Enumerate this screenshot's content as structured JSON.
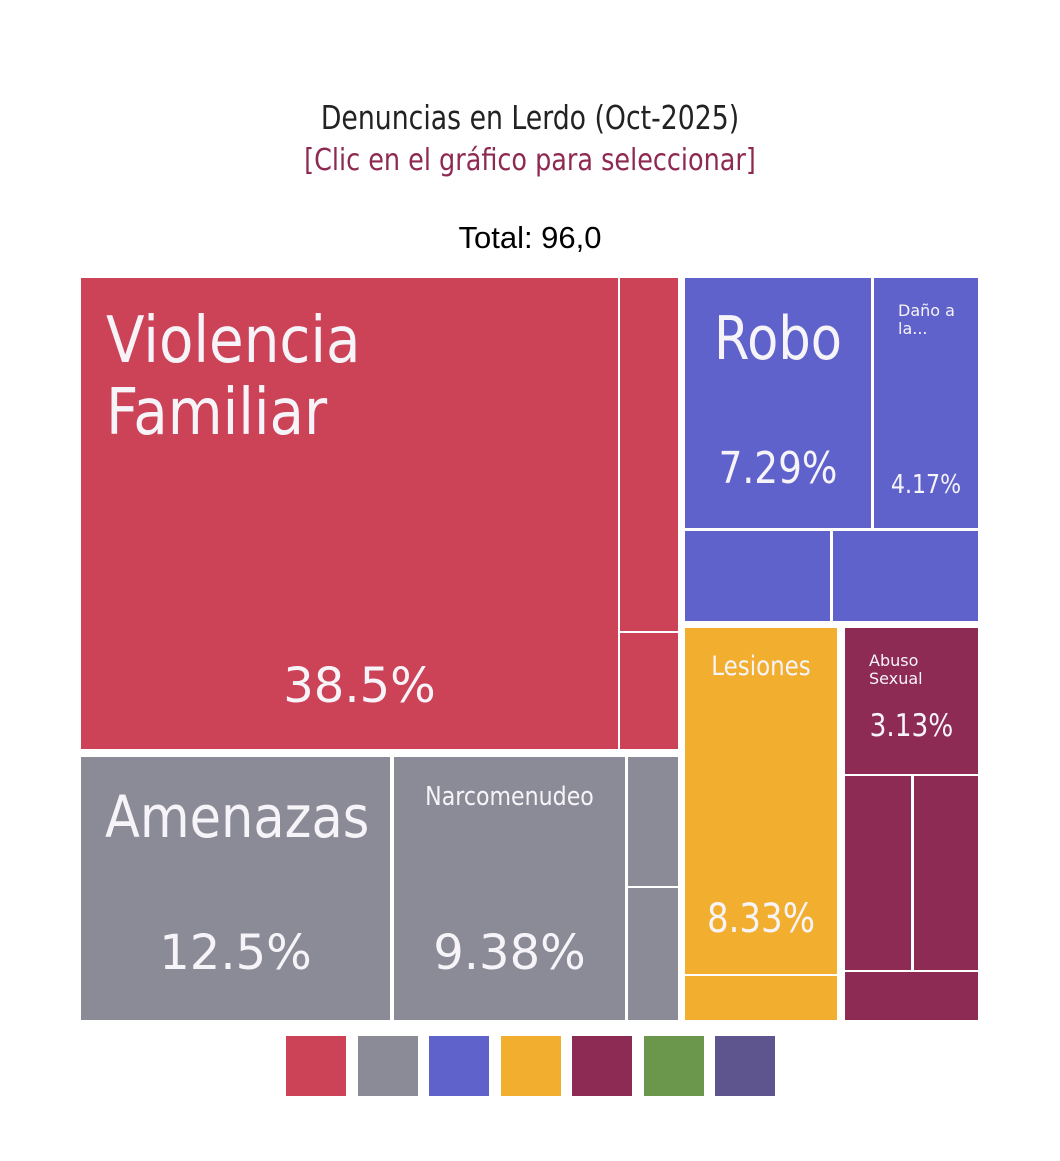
{
  "title": "Denuncias en Lerdo (Oct-2025)",
  "subtitle": "[Clic en el gráfico para seleccionar]",
  "total_label": "Total: 96,0",
  "chart_data": {
    "type": "treemap",
    "title": "Denuncias en Lerdo (Oct-2025)",
    "total": 96,
    "groups": [
      {
        "name": "Violencia Familiar",
        "color": "#cc4257",
        "cells": [
          {
            "label": "Violencia Familiar",
            "value": 37,
            "pct": "38.5%"
          },
          {
            "label": "",
            "value": 3
          },
          {
            "label": "",
            "value": 1
          }
        ]
      },
      {
        "name": "Amenazas",
        "color": "#8b8b97",
        "cells": [
          {
            "label": "Amenazas",
            "value": 12,
            "pct": "12.5%"
          },
          {
            "label": "Narcomenudeo",
            "value": 9,
            "pct": "9.38%"
          },
          {
            "label": "",
            "value": 1
          },
          {
            "label": "",
            "value": 1
          }
        ]
      },
      {
        "name": "Robo",
        "color": "#5f62cb",
        "cells": [
          {
            "label": "Robo",
            "value": 7,
            "pct": "7.29%"
          },
          {
            "label": "Daño a la...",
            "value": 4,
            "pct": "4.17%"
          },
          {
            "label": "",
            "value": 2
          },
          {
            "label": "",
            "value": 2
          }
        ]
      },
      {
        "name": "Lesiones",
        "color": "#f2ae2e",
        "cells": [
          {
            "label": "Lesiones",
            "value": 8,
            "pct": "8.33%"
          },
          {
            "label": "",
            "value": 1
          }
        ]
      },
      {
        "name": "Abuso Sexual",
        "color": "#8d2b55",
        "cells": [
          {
            "label": "Abuso Sexual",
            "value": 3,
            "pct": "3.13%"
          },
          {
            "label": "",
            "value": 2
          },
          {
            "label": "",
            "value": 2
          },
          {
            "label": "",
            "value": 1
          }
        ]
      }
    ],
    "legend_colors": [
      "#cc4257",
      "#8b8b97",
      "#5f62cb",
      "#f2ae2e",
      "#8d2b55",
      "#6a974b",
      "#5e548e"
    ],
    "legend_position": "bottom"
  }
}
